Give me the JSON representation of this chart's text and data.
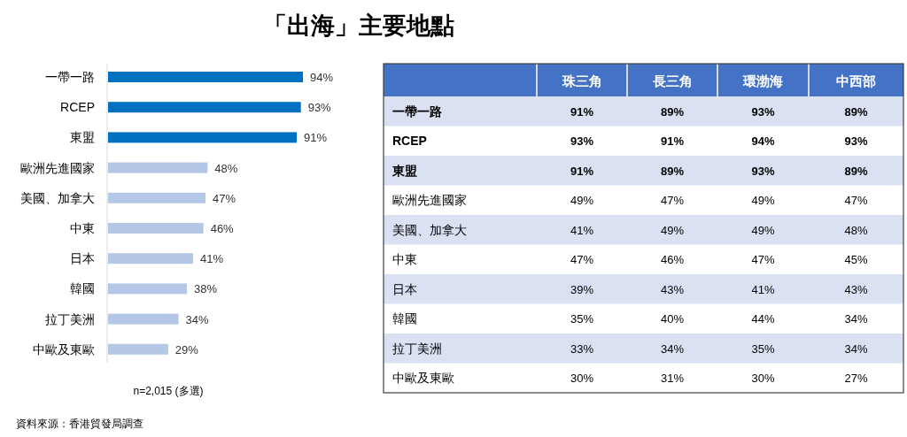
{
  "chart_data": [
    {
      "type": "bar",
      "orientation": "horizontal",
      "title": "「出海」主要地點",
      "categories": [
        "一帶一路",
        "RCEP",
        "東盟",
        "歐洲先進國家",
        "美國、加拿大",
        "中東",
        "日本",
        "韓國",
        "拉丁美洲",
        "中歐及東歐"
      ],
      "values": [
        94,
        93,
        91,
        48,
        47,
        46,
        41,
        38,
        34,
        29
      ],
      "colors": [
        "#0070c0",
        "#0070c0",
        "#0070c0",
        "#b4c7e7",
        "#b4c7e7",
        "#b4c7e7",
        "#b4c7e7",
        "#b4c7e7",
        "#b4c7e7",
        "#b4c7e7"
      ],
      "value_labels": [
        "94%",
        "93%",
        "91%",
        "48%",
        "47%",
        "46%",
        "41%",
        "38%",
        "34%",
        "29%"
      ],
      "annotations": [
        "n=2,015 (多選)",
        "資料來源：香港貿發局調查"
      ]
    },
    {
      "type": "heatmap",
      "categories": [
        "珠三角",
        "長三角",
        "環渤海",
        "中西部"
      ],
      "y_categories": [
        "一帶一路",
        "RCEP",
        "東盟",
        "歐洲先進國家",
        "美國、加拿大",
        "中東",
        "日本",
        "韓國",
        "拉丁美洲",
        "中歐及東歐"
      ],
      "cells": [
        [
          91,
          89,
          93,
          89
        ],
        [
          93,
          91,
          94,
          93
        ],
        [
          91,
          89,
          93,
          89
        ],
        [
          49,
          47,
          49,
          47
        ],
        [
          41,
          49,
          49,
          48
        ],
        [
          47,
          46,
          47,
          45
        ],
        [
          39,
          43,
          41,
          43
        ],
        [
          35,
          40,
          44,
          34
        ],
        [
          33,
          34,
          35,
          34
        ],
        [
          30,
          31,
          30,
          27
        ]
      ],
      "cell_labels": [
        [
          "91%",
          "89%",
          "93%",
          "89%"
        ],
        [
          "93%",
          "91%",
          "94%",
          "93%"
        ],
        [
          "91%",
          "89%",
          "93%",
          "89%"
        ],
        [
          "49%",
          "47%",
          "49%",
          "47%"
        ],
        [
          "41%",
          "49%",
          "49%",
          "48%"
        ],
        [
          "47%",
          "46%",
          "47%",
          "45%"
        ],
        [
          "39%",
          "43%",
          "41%",
          "43%"
        ],
        [
          "35%",
          "40%",
          "44%",
          "34%"
        ],
        [
          "33%",
          "34%",
          "35%",
          "34%"
        ],
        [
          "30%",
          "31%",
          "30%",
          "27%"
        ]
      ]
    }
  ]
}
